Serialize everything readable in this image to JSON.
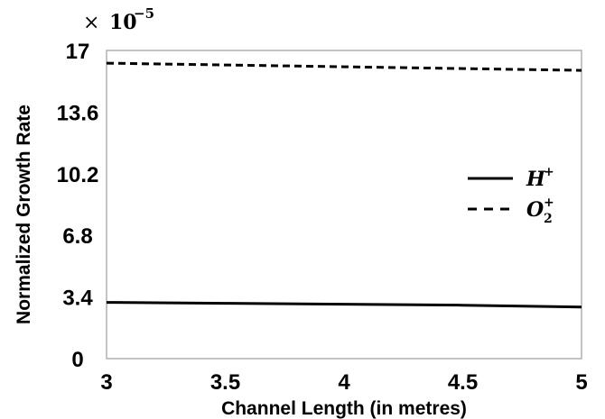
{
  "chart_data": {
    "type": "line",
    "title": "",
    "xlabel": "Channel Length (in metres)",
    "ylabel": "Normalized Growth Rate",
    "multiplier": {
      "times": "×",
      "base": "10",
      "exponent": "−5"
    },
    "xlim": [
      3,
      5
    ],
    "ylim": [
      0,
      17
    ],
    "xticks": [
      3,
      3.5,
      4,
      4.5,
      5
    ],
    "xtick_labels": [
      "3",
      "3.5",
      "4",
      "4.5",
      "5"
    ],
    "yticks": [
      0,
      3.4,
      6.8,
      10.2,
      13.6,
      17
    ],
    "ytick_labels": [
      "0",
      "3.4",
      "6.8",
      "10.2",
      "13.6",
      "17"
    ],
    "grid": false,
    "legend_position": "right",
    "series": [
      {
        "name": "H+",
        "legend_base": "H",
        "legend_sup": "+",
        "legend_sub": "",
        "style": "solid",
        "color": "#000000",
        "x": [
          3,
          3.5,
          4,
          4.5,
          5
        ],
        "y": [
          3.1,
          3.05,
          3.0,
          2.95,
          2.85
        ]
      },
      {
        "name": "O2+",
        "legend_base": "O",
        "legend_sup": "+",
        "legend_sub": "2",
        "style": "dashed",
        "color": "#000000",
        "x": [
          3,
          3.5,
          4,
          4.5,
          5
        ],
        "y": [
          16.3,
          16.2,
          16.1,
          16.0,
          15.9
        ]
      }
    ]
  }
}
